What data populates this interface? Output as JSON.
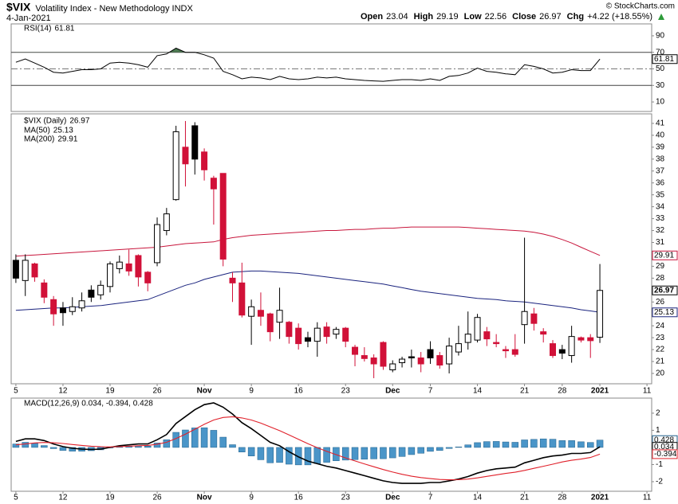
{
  "header": {
    "symbol": "$VIX",
    "name": "Volatility Index - New Methodology INDX",
    "date": "4-Jan-2021",
    "quote_labels": [
      "Open",
      "High",
      "Low",
      "Close",
      "Chg"
    ],
    "change": "+4.22 (+18.55%)",
    "copyright": "© StockCharts.com"
  },
  "chart_data": [
    {
      "type": "line",
      "name": "RSI(14)",
      "color": "#000000",
      "values": [
        58,
        62,
        57,
        52,
        46,
        45,
        47,
        49,
        49,
        50,
        57,
        58,
        57,
        55,
        52,
        66,
        68,
        75,
        70,
        70,
        67,
        63,
        47,
        43,
        38,
        40,
        39,
        37,
        41,
        38,
        37,
        38,
        40,
        39,
        40,
        38,
        37,
        36,
        35.5,
        35,
        36,
        37,
        37,
        36,
        38,
        36,
        41,
        42,
        45,
        51,
        47,
        46,
        44,
        43,
        55,
        53,
        50,
        45,
        46,
        49,
        48,
        48,
        61.81,
        null,
        null,
        null,
        null,
        null
      ],
      "ylim": [
        -1.5,
        104.4
      ],
      "yticks": [
        90,
        70,
        50,
        30,
        10
      ],
      "reference_lines": [
        {
          "value": 70,
          "style": "solid"
        },
        {
          "value": 50,
          "style": "dashdot"
        },
        {
          "value": 30,
          "style": "solid"
        }
      ],
      "overbought_fill": "#4d7a52"
    },
    {
      "type": "candlestick",
      "name": "$VIX (Daily)",
      "categories": [
        "5",
        null,
        null,
        null,
        null,
        "12",
        null,
        null,
        null,
        null,
        "19",
        null,
        null,
        null,
        null,
        "26",
        null,
        null,
        null,
        null,
        "Nov",
        null,
        null,
        null,
        null,
        "9",
        null,
        null,
        null,
        null,
        "16",
        null,
        null,
        null,
        null,
        "23",
        null,
        null,
        null,
        null,
        "Dec",
        null,
        null,
        null,
        "7",
        null,
        null,
        null,
        null,
        "14",
        null,
        null,
        null,
        null,
        "21",
        null,
        null,
        null,
        "28",
        null,
        null,
        null,
        "2021",
        null,
        null,
        null,
        null,
        "11"
      ],
      "open": [
        29.5,
        27.8,
        29.2,
        27.6,
        26.2,
        25.5,
        25.2,
        25.5,
        27.0,
        26.6,
        27.3,
        28.8,
        29.2,
        29.9,
        28.5,
        29.3,
        32.0,
        34.6,
        39.0,
        40.8,
        38.6,
        36.4,
        36.8,
        28.0,
        27.6,
        24.8,
        25.3,
        25.0,
        24.3,
        24.3,
        23.8,
        23.0,
        22.7,
        23.9,
        23.3,
        23.8,
        22.2,
        21.5,
        21.3,
        22.6,
        20.3,
        20.9,
        21.4,
        21.3,
        22.0,
        21.5,
        20.8,
        21.8,
        22.6,
        22.8,
        23.5,
        22.6,
        22.0,
        22.0,
        24.1,
        25.0,
        23.5,
        22.5,
        22.0,
        21.5,
        23.0,
        23.0,
        23.04,
        null,
        null,
        null,
        null,
        null
      ],
      "high": [
        30.0,
        30.0,
        29.3,
        27.9,
        26.5,
        26.0,
        26.4,
        26.8,
        27.4,
        27.8,
        29.4,
        29.9,
        30.4,
        30.0,
        28.6,
        33.1,
        33.9,
        40.8,
        41.2,
        41.1,
        38.9,
        36.6,
        36.8,
        28.5,
        29.3,
        26.2,
        26.8,
        25.1,
        27.2,
        24.4,
        24.2,
        23.5,
        24.3,
        24.3,
        23.9,
        23.9,
        22.4,
        22.2,
        21.6,
        22.7,
        21.1,
        21.4,
        22.0,
        21.8,
        22.7,
        21.8,
        23.0,
        24.0,
        25.2,
        25.0,
        23.9,
        23.3,
        22.3,
        23.3,
        31.4,
        25.5,
        23.8,
        22.8,
        22.4,
        24.0,
        23.1,
        23.3,
        29.19,
        null,
        null,
        null,
        null,
        null
      ],
      "low": [
        27.6,
        26.5,
        27.7,
        25.9,
        24.0,
        24.0,
        24.9,
        25.2,
        26.0,
        26.2,
        26.8,
        28.4,
        28.2,
        27.3,
        26.9,
        29.0,
        31.6,
        34.5,
        35.7,
        36.7,
        36.2,
        32.5,
        29.0,
        26.0,
        24.7,
        22.4,
        24.0,
        22.7,
        22.9,
        22.5,
        22.0,
        22.2,
        21.4,
        22.5,
        22.9,
        22.2,
        20.6,
        21.0,
        19.6,
        20.3,
        20.1,
        20.5,
        20.5,
        20.1,
        20.8,
        20.4,
        20.0,
        21.5,
        22.0,
        22.6,
        22.3,
        22.2,
        21.3,
        21.4,
        22.5,
        23.6,
        22.6,
        21.3,
        21.2,
        20.9,
        22.6,
        21.3,
        22.56,
        null,
        null,
        null,
        null,
        null
      ],
      "close": [
        28.0,
        29.5,
        28.1,
        26.4,
        25.0,
        25.1,
        25.6,
        26.1,
        26.4,
        27.4,
        29.2,
        29.35,
        28.6,
        28.1,
        27.6,
        32.5,
        33.4,
        40.3,
        37.6,
        38.0,
        37.1,
        35.5,
        29.6,
        27.6,
        24.9,
        25.6,
        24.8,
        23.5,
        25.3,
        23.1,
        22.5,
        22.7,
        23.8,
        23.1,
        23.7,
        22.7,
        21.6,
        21.25,
        20.8,
        20.6,
        20.8,
        21.2,
        21.3,
        20.8,
        21.3,
        20.7,
        22.3,
        22.5,
        23.3,
        24.7,
        22.9,
        22.5,
        21.9,
        21.6,
        25.2,
        24.2,
        23.3,
        21.5,
        21.7,
        23.1,
        22.8,
        22.75,
        26.97,
        null,
        null,
        null,
        null,
        null
      ],
      "up_color": "#000000",
      "down_color": "#d11138",
      "series": [
        {
          "name": "MA(50)",
          "color": "#1a237e",
          "values": [
            25.3,
            25.35,
            25.4,
            25.45,
            25.5,
            25.5,
            25.55,
            25.6,
            25.65,
            25.7,
            25.8,
            25.9,
            26.0,
            26.1,
            26.2,
            26.5,
            26.8,
            27.1,
            27.4,
            27.6,
            27.9,
            28.1,
            28.3,
            28.5,
            28.55,
            28.6,
            28.6,
            28.55,
            28.5,
            28.45,
            28.4,
            28.3,
            28.2,
            28.1,
            28.0,
            27.9,
            27.8,
            27.7,
            27.6,
            27.5,
            27.35,
            27.2,
            27.05,
            26.9,
            26.8,
            26.7,
            26.6,
            26.5,
            26.4,
            26.3,
            26.25,
            26.2,
            26.1,
            26.05,
            26.0,
            25.9,
            25.8,
            25.7,
            25.6,
            25.5,
            25.35,
            25.25,
            25.13,
            null,
            null,
            null,
            null,
            null
          ]
        },
        {
          "name": "MA(200)",
          "color": "#c8163c",
          "values": [
            29.85,
            29.9,
            29.95,
            30.0,
            30.05,
            30.1,
            30.15,
            30.2,
            30.25,
            30.3,
            30.35,
            30.4,
            30.45,
            30.5,
            30.55,
            30.6,
            30.7,
            30.8,
            30.9,
            30.95,
            31.0,
            31.05,
            31.25,
            31.4,
            31.5,
            31.6,
            31.65,
            31.7,
            31.75,
            31.8,
            31.85,
            31.9,
            31.95,
            32.0,
            32.0,
            32.05,
            32.1,
            32.1,
            32.15,
            32.2,
            32.2,
            32.25,
            32.3,
            32.3,
            32.3,
            32.3,
            32.3,
            32.3,
            32.25,
            32.2,
            32.15,
            32.1,
            32.05,
            32.0,
            31.95,
            31.85,
            31.7,
            31.5,
            31.25,
            30.95,
            30.6,
            30.25,
            29.91,
            null,
            null,
            null,
            null,
            null
          ]
        }
      ],
      "ylim": [
        19.13,
        41.8
      ],
      "yticks": [
        20,
        21,
        22,
        23,
        24,
        26,
        28,
        29,
        31,
        32,
        33,
        34,
        35,
        36,
        37,
        38,
        39,
        40,
        41
      ]
    },
    {
      "type": "macd",
      "title": "MACD(12,26,9) 0.034, -0.394, 0.428",
      "categories": [
        "5",
        null,
        null,
        null,
        null,
        "12",
        null,
        null,
        null,
        null,
        "19",
        null,
        null,
        null,
        null,
        "26",
        null,
        null,
        null,
        null,
        "Nov",
        null,
        null,
        null,
        null,
        "9",
        null,
        null,
        null,
        null,
        "16",
        null,
        null,
        null,
        null,
        "23",
        null,
        null,
        null,
        null,
        "Dec",
        null,
        null,
        null,
        "7",
        null,
        null,
        null,
        null,
        "14",
        null,
        null,
        null,
        null,
        "21",
        null,
        null,
        null,
        "28",
        null,
        null,
        null,
        "2021",
        null,
        null,
        null,
        null,
        "11"
      ],
      "series": [
        {
          "style": "histogram",
          "color": "#4a95c8",
          "values": [
            0.2,
            0.3,
            0.24,
            0.11,
            -0.07,
            -0.18,
            -0.22,
            -0.22,
            -0.19,
            -0.14,
            -0.03,
            0.05,
            0.08,
            0.1,
            0.08,
            0.26,
            0.45,
            0.88,
            1.02,
            1.14,
            1.15,
            1.0,
            0.6,
            0.16,
            -0.27,
            -0.5,
            -0.72,
            -0.9,
            -0.88,
            -0.98,
            -1.02,
            -1.02,
            -0.94,
            -0.87,
            -0.78,
            -0.74,
            -0.71,
            -0.69,
            -0.67,
            -0.66,
            -0.61,
            -0.53,
            -0.42,
            -0.34,
            -0.23,
            -0.18,
            -0.06,
            0.03,
            0.15,
            0.28,
            0.34,
            0.35,
            0.32,
            0.3,
            0.44,
            0.47,
            0.5,
            0.48,
            0.4,
            0.4,
            0.33,
            0.29,
            0.428,
            null,
            null,
            null,
            null,
            null
          ]
        },
        {
          "style": "line",
          "color": "#000000",
          "values": [
            0.35,
            0.5,
            0.5,
            0.4,
            0.2,
            0.05,
            -0.05,
            -0.1,
            -0.12,
            -0.1,
            0.0,
            0.1,
            0.15,
            0.2,
            0.2,
            0.45,
            0.75,
            1.4,
            1.8,
            2.2,
            2.5,
            2.6,
            2.35,
            1.95,
            1.45,
            1.1,
            0.7,
            0.3,
            0.1,
            -0.25,
            -0.55,
            -0.8,
            -0.95,
            -1.1,
            -1.2,
            -1.35,
            -1.5,
            -1.65,
            -1.8,
            -1.95,
            -2.05,
            -2.1,
            -2.1,
            -2.1,
            -2.05,
            -2.05,
            -1.95,
            -1.85,
            -1.7,
            -1.5,
            -1.35,
            -1.25,
            -1.2,
            -1.15,
            -0.9,
            -0.75,
            -0.6,
            -0.5,
            -0.45,
            -0.35,
            -0.35,
            -0.3,
            0.034,
            null,
            null,
            null,
            null,
            null
          ]
        },
        {
          "style": "line",
          "color": "#e0202a",
          "values": [
            0.15,
            0.2,
            0.26,
            0.29,
            0.27,
            0.23,
            0.17,
            0.12,
            0.07,
            0.04,
            0.03,
            0.05,
            0.07,
            0.1,
            0.12,
            0.19,
            0.3,
            0.52,
            0.78,
            1.06,
            1.35,
            1.6,
            1.75,
            1.79,
            1.72,
            1.6,
            1.42,
            1.2,
            0.98,
            0.73,
            0.47,
            0.22,
            -0.01,
            -0.23,
            -0.42,
            -0.61,
            -0.79,
            -0.96,
            -1.13,
            -1.29,
            -1.44,
            -1.57,
            -1.68,
            -1.76,
            -1.82,
            -1.87,
            -1.89,
            -1.88,
            -1.85,
            -1.78,
            -1.69,
            -1.6,
            -1.52,
            -1.45,
            -1.34,
            -1.22,
            -1.1,
            -0.98,
            -0.85,
            -0.75,
            -0.68,
            -0.59,
            -0.394,
            null,
            null,
            null,
            null,
            null
          ]
        }
      ],
      "ylim": [
        -2.56,
        2.88
      ],
      "yticks": [
        2,
        1,
        -1,
        -2
      ]
    }
  ]
}
